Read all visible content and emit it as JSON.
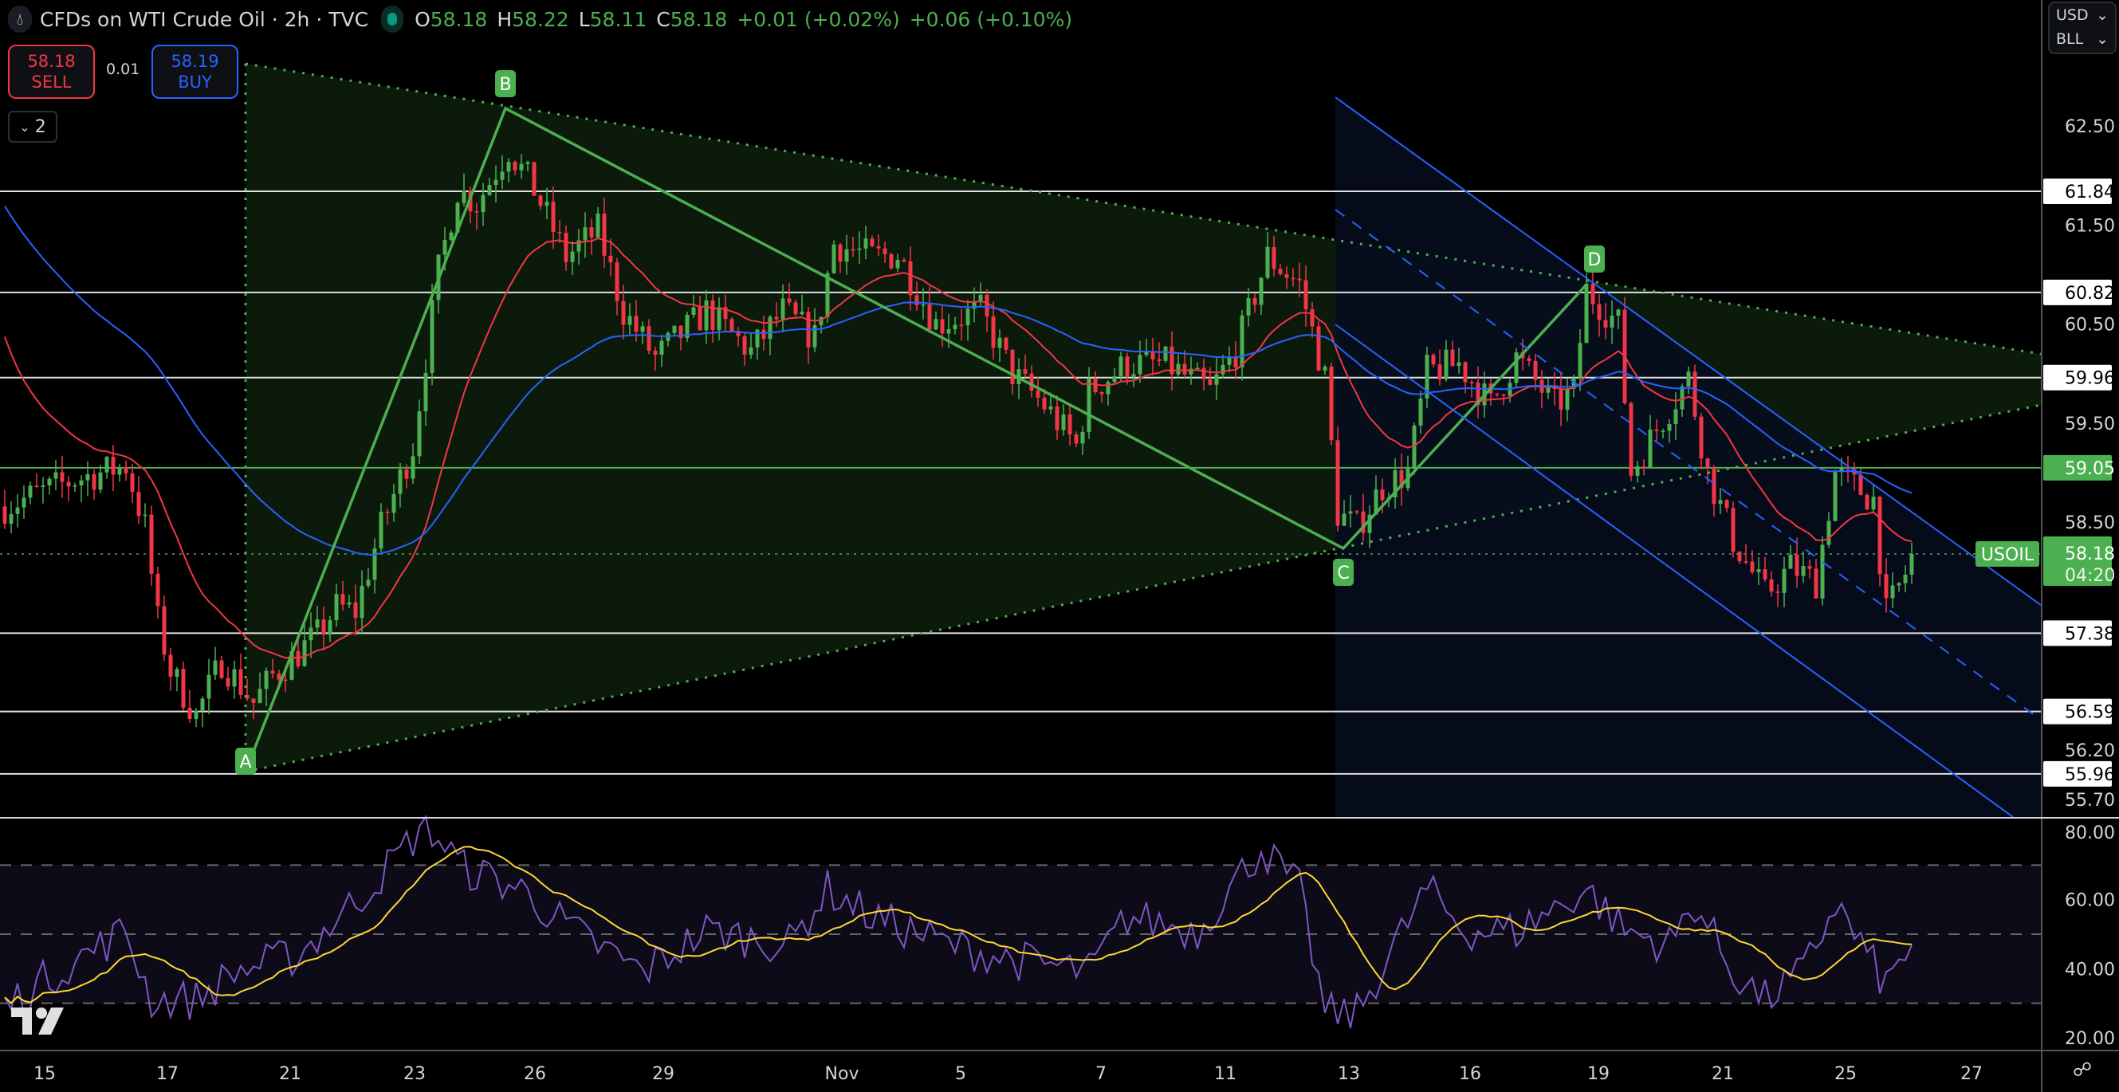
{
  "header": {
    "title": "CFDs on WTI Crude Oil · 2h · TVC",
    "ohlc": [
      {
        "label": "O",
        "value": "58.18"
      },
      {
        "label": "H",
        "value": "58.22"
      },
      {
        "label": "L",
        "value": "58.11"
      },
      {
        "label": "C",
        "value": "58.18"
      }
    ],
    "change": "+0.01 (+0.02%)",
    "change2": "+0.06 (+0.10%)"
  },
  "trade": {
    "sell_price": "58.18",
    "sell_label": "SELL",
    "spread": "0.01",
    "buy_price": "58.19",
    "buy_label": "BUY"
  },
  "layers_label": "2",
  "units": {
    "currency": "USD",
    "unit": "BLL"
  },
  "colors": {
    "up": "#4caf50",
    "down": "#f23645",
    "ema_fast": "#f23645",
    "ema_slow": "#2962ff",
    "rsi": "#7e57c2",
    "rsi_ma": "#fdd835",
    "accent_green": "#4caf50",
    "channel": "#2962ff"
  },
  "chart_data": {
    "type": "candlestick",
    "title": "CFDs on WTI Crude Oil · 2h · TVC",
    "symbol_tag": "USOIL",
    "last_price": "58.18",
    "countdown": "04:20",
    "price_range": [
      55.7,
      62.5
    ],
    "bars": 300,
    "close_keypoints": [
      [
        0,
        58.66
      ],
      [
        11,
        58.93
      ],
      [
        19,
        59.07
      ],
      [
        22,
        58.45
      ],
      [
        24,
        57.5
      ],
      [
        26,
        57.0
      ],
      [
        30,
        56.55
      ],
      [
        34,
        57.1
      ],
      [
        39,
        56.68
      ],
      [
        42,
        56.95
      ],
      [
        49,
        57.36
      ],
      [
        52,
        57.64
      ],
      [
        55,
        57.6
      ],
      [
        59,
        58.45
      ],
      [
        64,
        59.27
      ],
      [
        68,
        61.04
      ],
      [
        71,
        61.86
      ],
      [
        74,
        61.72
      ],
      [
        79,
        62.27
      ],
      [
        83,
        61.86
      ],
      [
        88,
        61.18
      ],
      [
        93,
        61.45
      ],
      [
        97,
        60.63
      ],
      [
        102,
        60.16
      ],
      [
        110,
        60.63
      ],
      [
        117,
        60.22
      ],
      [
        122,
        60.63
      ],
      [
        127,
        60.36
      ],
      [
        130,
        61.31
      ],
      [
        136,
        61.18
      ],
      [
        140,
        61.2
      ],
      [
        146,
        60.5
      ],
      [
        153,
        60.63
      ],
      [
        158,
        60.0
      ],
      [
        163,
        59.68
      ],
      [
        168,
        59.27
      ],
      [
        170,
        59.82
      ],
      [
        176,
        60.1
      ],
      [
        182,
        60.1
      ],
      [
        189,
        59.82
      ],
      [
        193,
        60.23
      ],
      [
        198,
        61.18
      ],
      [
        203,
        60.9
      ],
      [
        207,
        59.95
      ],
      [
        209,
        58.59
      ],
      [
        212,
        58.45
      ],
      [
        216,
        58.86
      ],
      [
        220,
        59.0
      ],
      [
        223,
        60.02
      ],
      [
        228,
        60.1
      ],
      [
        233,
        59.68
      ],
      [
        237,
        60.16
      ],
      [
        243,
        59.68
      ],
      [
        246,
        59.82
      ],
      [
        248,
        60.84
      ],
      [
        253,
        60.5
      ],
      [
        255,
        59.0
      ],
      [
        260,
        59.55
      ],
      [
        264,
        59.95
      ],
      [
        267,
        59.0
      ],
      [
        271,
        58.32
      ],
      [
        276,
        57.77
      ],
      [
        280,
        58.05
      ],
      [
        284,
        57.9
      ],
      [
        287,
        59.0
      ],
      [
        293,
        58.73
      ],
      [
        295,
        57.57
      ],
      [
        298,
        57.98
      ],
      [
        300,
        58.18
      ]
    ],
    "ma_series": [
      {
        "name": "EMA fast",
        "period": 20,
        "start": 60.57
      },
      {
        "name": "EMA slow",
        "period": 60,
        "start": 61.8
      }
    ],
    "horizontal_levels": [
      {
        "price": "61.84",
        "style": "white"
      },
      {
        "price": "60.82",
        "style": "white"
      },
      {
        "price": "59.96",
        "style": "white"
      },
      {
        "price": "59.05",
        "style": "green"
      },
      {
        "price": "57.38",
        "style": "white"
      },
      {
        "price": "56.59",
        "style": "white"
      },
      {
        "price": "55.96",
        "style": "white"
      }
    ],
    "pattern_labels": [
      "A",
      "B",
      "C",
      "D"
    ],
    "price_ticks": [
      "62.50",
      "61.50",
      "60.50",
      "59.50",
      "58.50",
      "56.20",
      "55.70"
    ],
    "rsi": {
      "range": [
        20,
        80
      ],
      "bands": [
        30,
        50,
        70
      ],
      "ma_period": 14,
      "ticks": [
        "80.00",
        "60.00",
        "40.00",
        "20.00"
      ],
      "keypoints": [
        [
          0,
          29
        ],
        [
          8,
          39
        ],
        [
          19,
          51
        ],
        [
          23,
          31
        ],
        [
          30,
          31
        ],
        [
          36,
          39
        ],
        [
          46,
          44
        ],
        [
          57,
          63
        ],
        [
          66,
          82
        ],
        [
          72,
          69
        ],
        [
          81,
          63
        ],
        [
          89,
          51
        ],
        [
          100,
          39
        ],
        [
          110,
          51
        ],
        [
          123,
          47
        ],
        [
          129,
          63
        ],
        [
          136,
          55
        ],
        [
          148,
          47
        ],
        [
          157,
          43
        ],
        [
          170,
          39
        ],
        [
          176,
          55
        ],
        [
          187,
          51
        ],
        [
          197,
          75
        ],
        [
          203,
          63
        ],
        [
          207,
          27
        ],
        [
          212,
          27
        ],
        [
          218,
          47
        ],
        [
          223,
          63
        ],
        [
          229,
          51
        ],
        [
          237,
          51
        ],
        [
          248,
          63
        ],
        [
          254,
          51
        ],
        [
          261,
          47
        ],
        [
          265,
          59
        ],
        [
          271,
          39
        ],
        [
          276,
          31
        ],
        [
          282,
          39
        ],
        [
          287,
          59
        ],
        [
          295,
          35
        ],
        [
          300,
          51
        ]
      ]
    },
    "time_ticks": [
      "15",
      "17",
      "21",
      "23",
      "26",
      "29",
      "Nov",
      "5",
      "7",
      "11",
      "13",
      "16",
      "19",
      "21",
      "25",
      "27"
    ]
  }
}
